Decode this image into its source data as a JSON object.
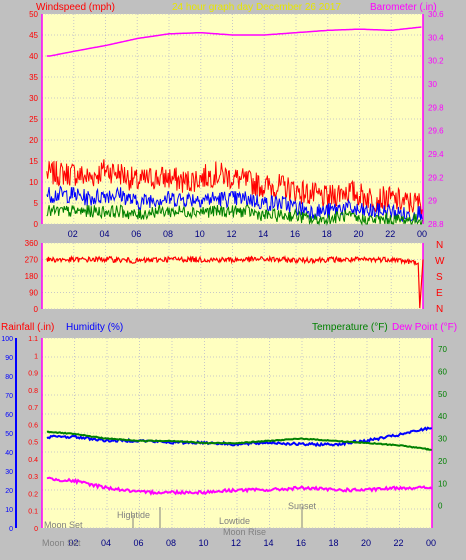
{
  "header": {
    "left_title": "Windspeed (mph)",
    "center_title": "24 hour graph day   December 26 2017",
    "right_title": "Barometer (.in)"
  },
  "lower_header": {
    "rainfall": "Rainfall (.in)",
    "humidity": "Humidity (%)",
    "temperature": "Temperature (°F)",
    "dewpoint": "Dew Point (°F)"
  },
  "compass": [
    "N",
    "W",
    "S",
    "E",
    "N"
  ],
  "events": {
    "moon_set_top": "Moon Set",
    "hightide": "Hightide",
    "lowtide": "Lowtide",
    "sunset": "Sunset",
    "moon_set_bottom": "Moon Set",
    "moon_rise": "Moon Rise"
  },
  "colors": {
    "bg": "#c0c0c0",
    "plot": "#ffffc0",
    "axis": "#ff00ff",
    "wind_gust": "#ff0000",
    "wind_avg": "#0000ff",
    "wind_low": "#008000",
    "barometer": "#ff00ff",
    "direction": "#ff0000",
    "humidity": "#0000ff",
    "temperature": "#008000",
    "dewpoint": "#ff00ff",
    "rainfall_axis": "#0000ff",
    "title_yellow": "#e6e600"
  },
  "chart_data": [
    {
      "type": "line",
      "name": "wind_barometer",
      "x_tick_labels": [
        "02",
        "04",
        "06",
        "08",
        "10",
        "12",
        "14",
        "16",
        "18",
        "20",
        "22",
        "00"
      ],
      "x_hours": [
        2,
        4,
        6,
        8,
        10,
        12,
        14,
        16,
        18,
        20,
        22,
        24
      ],
      "xlim": [
        0,
        24
      ],
      "y_left_ticks": [
        0,
        5,
        10,
        15,
        20,
        25,
        30,
        35,
        40,
        45,
        50
      ],
      "ylim_left": [
        0,
        50
      ],
      "y_right_ticks": [
        "28.8",
        "29",
        "29.2",
        "29.4",
        "29.6",
        "29.8",
        "30",
        "30.2",
        "30.4",
        "30.6"
      ],
      "ylim_right": [
        28.8,
        30.6
      ],
      "series": [
        {
          "color_key": "wind_gust",
          "x": [
            0.5,
            1,
            2,
            3,
            4,
            5,
            6,
            7,
            8,
            9,
            10,
            11,
            12,
            13,
            14,
            15,
            16,
            17,
            18,
            19,
            20,
            21,
            22,
            23,
            24
          ],
          "values": [
            12,
            12,
            12,
            11,
            13,
            12,
            10,
            11,
            11,
            10,
            11,
            12,
            11,
            10,
            9,
            9,
            8,
            7,
            6,
            8,
            7,
            6,
            6,
            5,
            5
          ]
        },
        {
          "color_key": "wind_avg",
          "x": [
            0.5,
            1,
            2,
            3,
            4,
            5,
            6,
            7,
            8,
            9,
            10,
            11,
            12,
            13,
            14,
            15,
            16,
            17,
            18,
            19,
            20,
            21,
            22,
            23,
            24
          ],
          "values": [
            7,
            7,
            7,
            6,
            7,
            7,
            5,
            6,
            6,
            6,
            6,
            6,
            6,
            6,
            5,
            5,
            4,
            3,
            3,
            4,
            3,
            3,
            3,
            2,
            3
          ]
        },
        {
          "color_key": "wind_low",
          "x": [
            0.5,
            1,
            2,
            3,
            4,
            5,
            6,
            7,
            8,
            9,
            10,
            11,
            12,
            13,
            14,
            15,
            16,
            17,
            18,
            19,
            20,
            21,
            22,
            23,
            24
          ],
          "values": [
            3,
            3,
            3,
            3,
            3,
            3,
            2,
            3,
            3,
            3,
            3,
            3,
            3,
            3,
            2,
            2,
            2,
            1,
            1,
            2,
            1,
            1,
            1,
            1,
            1
          ]
        },
        {
          "color_key": "barometer",
          "axis": "right",
          "x": [
            0.5,
            2,
            4,
            6,
            8,
            10,
            12,
            14,
            16,
            18,
            20,
            22,
            24
          ],
          "values": [
            30.24,
            30.28,
            30.33,
            30.39,
            30.43,
            30.44,
            30.42,
            30.42,
            30.44,
            30.46,
            30.47,
            30.46,
            30.49
          ]
        }
      ]
    },
    {
      "type": "line",
      "name": "wind_direction",
      "x_tick_labels": [
        "02",
        "04",
        "06",
        "08",
        "10",
        "12",
        "14",
        "16",
        "18",
        "20",
        "22",
        "00"
      ],
      "xlim": [
        0,
        24
      ],
      "y_ticks": [
        0,
        90,
        180,
        270,
        360
      ],
      "ylim": [
        0,
        360
      ],
      "series": [
        {
          "color_key": "direction",
          "x": [
            0.5,
            2,
            4,
            6,
            8,
            10,
            12,
            14,
            16,
            18,
            20,
            22,
            23.7,
            23.8,
            24
          ],
          "values": [
            270,
            268,
            272,
            262,
            272,
            270,
            268,
            272,
            266,
            270,
            268,
            272,
            250,
            5,
            270
          ]
        }
      ]
    },
    {
      "type": "line",
      "name": "humidity_temperature",
      "x_tick_labels": [
        "02",
        "04",
        "06",
        "08",
        "10",
        "12",
        "14",
        "16",
        "18",
        "20",
        "22",
        "00"
      ],
      "xlim": [
        0,
        24
      ],
      "humidity_ticks": [
        0,
        10,
        20,
        30,
        40,
        50,
        60,
        70,
        80,
        90,
        100
      ],
      "ylim_humidity": [
        0,
        100
      ],
      "rainfall_ticks": [
        "0",
        "0.1",
        "0.2",
        "0.3",
        "0.4",
        "0.5",
        "0.6",
        "0.7",
        "0.8",
        "0.9",
        "1",
        "1.1"
      ],
      "ylim_rainfall": [
        0,
        1.1
      ],
      "temp_ticks": [
        0,
        10,
        20,
        30,
        40,
        50,
        60,
        70
      ],
      "ylim_temp": [
        -10,
        75
      ],
      "series": [
        {
          "color_key": "humidity",
          "axis": "left",
          "x": [
            0.5,
            2,
            4,
            6,
            8,
            10,
            12,
            14,
            16,
            18,
            20,
            22,
            23.5,
            24
          ],
          "values": [
            48,
            48,
            46,
            46,
            45,
            45,
            44,
            45,
            44,
            44,
            46,
            49,
            52,
            53
          ]
        },
        {
          "color_key": "temperature",
          "axis": "right",
          "x": [
            0.5,
            2,
            4,
            6,
            8,
            10,
            12,
            14,
            16,
            18,
            20,
            22,
            24
          ],
          "values": [
            33,
            32,
            30,
            29,
            29,
            28,
            28,
            29,
            30,
            29,
            28,
            27,
            25
          ]
        },
        {
          "color_key": "dewpoint",
          "axis": "right",
          "x": [
            0.5,
            2,
            4,
            6,
            8,
            10,
            12,
            14,
            16,
            18,
            20,
            22,
            24
          ],
          "values": [
            12,
            11,
            8,
            6,
            6,
            6,
            7,
            7,
            8,
            7,
            7,
            8,
            8
          ]
        }
      ]
    }
  ]
}
